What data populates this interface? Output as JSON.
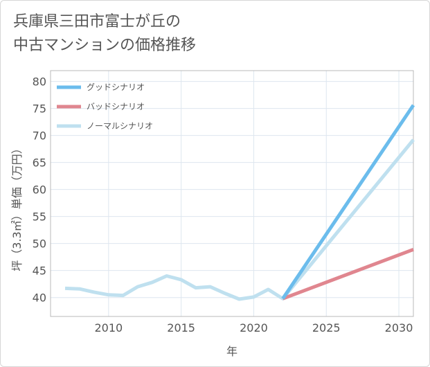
{
  "chart_data": {
    "type": "line",
    "title_lines": [
      "兵庫県三田市富士が丘の",
      "中古マンションの価格推移"
    ],
    "xlabel": "年",
    "ylabel": "坪（3.3㎡）単価（万円）",
    "xlim": [
      2006,
      2031
    ],
    "ylim": [
      36.5,
      82
    ],
    "xticks": [
      2010,
      2015,
      2020,
      2025,
      2030
    ],
    "yticks": [
      40,
      45,
      50,
      55,
      60,
      65,
      70,
      75,
      80
    ],
    "grid": true,
    "legend_position": "top-left",
    "series": [
      {
        "name": "グッドシナリオ",
        "color": "#6bbcec",
        "x": [
          2022,
          2031
        ],
        "y": [
          39.8,
          75.6
        ]
      },
      {
        "name": "バッドシナリオ",
        "color": "#e0868f",
        "x": [
          2022,
          2031
        ],
        "y": [
          39.8,
          48.9
        ]
      },
      {
        "name": "ノーマルシナリオ",
        "color": "#bfe0ef",
        "x": [
          2007,
          2008,
          2009,
          2010,
          2011,
          2012,
          2013,
          2014,
          2015,
          2016,
          2017,
          2018,
          2019,
          2020,
          2021,
          2022,
          2031
        ],
        "y": [
          41.7,
          41.6,
          41.0,
          40.5,
          40.4,
          42.0,
          42.8,
          44.0,
          43.3,
          41.8,
          42.0,
          40.8,
          39.7,
          40.1,
          41.5,
          39.8,
          69.2
        ]
      }
    ]
  }
}
